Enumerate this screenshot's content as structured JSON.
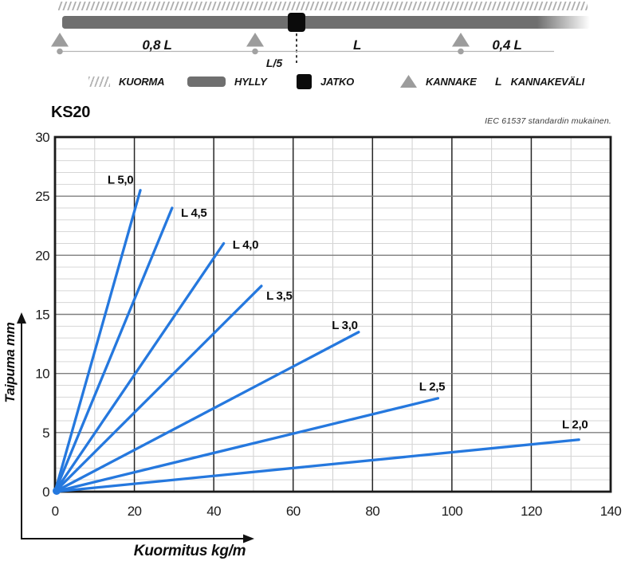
{
  "title": "KS20",
  "standard_note": "IEC 61537 standardin mukainen.",
  "colors": {
    "line_blue": "#2578DE",
    "shelf_gray": "#6F6F6F",
    "support_gray": "#9C9C9C",
    "joint_black": "#0B0B0B"
  },
  "diagram": {
    "span_labels": {
      "left": "0,8 L",
      "middle": "L",
      "right": "0,4 L"
    },
    "joint_offset_label": "L/5",
    "legend": {
      "kuorma": "KUORMA",
      "hylly": "HYLLY",
      "jatko": "JATKO",
      "kannake": "KANNAKE",
      "span_symbol": "L",
      "kannakevali": "KANNAKEVÄLI"
    }
  },
  "chart_data": {
    "type": "line",
    "title": "KS20",
    "xlabel": "Kuormitus kg/m",
    "ylabel": "Taipuma mm",
    "xlim": [
      0,
      140
    ],
    "ylim": [
      0,
      30
    ],
    "x_ticks": [
      0,
      20,
      40,
      60,
      80,
      100,
      120,
      140
    ],
    "y_ticks": [
      0,
      5,
      10,
      15,
      20,
      25,
      30
    ],
    "x_minor_step": 10,
    "y_minor_step": 1,
    "grid": true,
    "legend_position": "inline-labels",
    "line_color": "#2578DE",
    "series": [
      {
        "name": "L 5,0",
        "points": [
          [
            0,
            0
          ],
          [
            21.5,
            25.5
          ]
        ],
        "label_at": [
          16.5,
          26.4
        ]
      },
      {
        "name": "L 4,5",
        "points": [
          [
            0,
            0
          ],
          [
            29.5,
            24.0
          ]
        ],
        "label_at": [
          35.0,
          23.6
        ]
      },
      {
        "name": "L 4,0",
        "points": [
          [
            0,
            0
          ],
          [
            42.5,
            21.0
          ]
        ],
        "label_at": [
          48.0,
          20.9
        ]
      },
      {
        "name": "L 3,5",
        "points": [
          [
            0,
            0
          ],
          [
            52.0,
            17.4
          ]
        ],
        "label_at": [
          56.5,
          16.6
        ]
      },
      {
        "name": "L 3,0",
        "points": [
          [
            0,
            0
          ],
          [
            76.5,
            13.5
          ]
        ],
        "label_at": [
          73.0,
          14.1
        ]
      },
      {
        "name": "L 2,5",
        "points": [
          [
            0,
            0
          ],
          [
            96.5,
            7.9
          ]
        ],
        "label_at": [
          95.0,
          8.9
        ]
      },
      {
        "name": "L 2,0",
        "points": [
          [
            0,
            0
          ],
          [
            132.0,
            4.4
          ]
        ],
        "label_at": [
          131.0,
          5.7
        ]
      }
    ]
  }
}
